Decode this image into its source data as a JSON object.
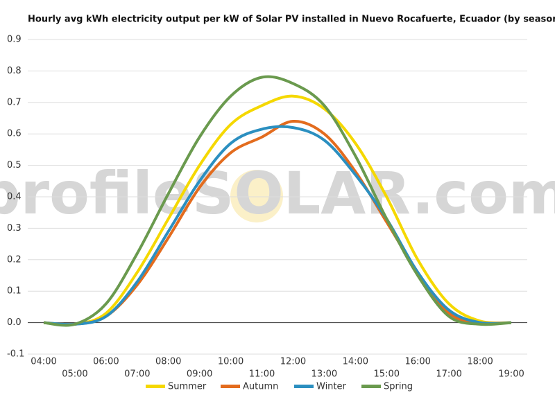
{
  "chart_data": {
    "type": "line",
    "title": "Hourly avg kWh electricity output per kW of Solar PV installed in Nuevo Rocafuerte, Ecuador (by season)",
    "watermark": "profileSOLAR.com",
    "categories": [
      "04:00",
      "05:00",
      "06:00",
      "07:00",
      "08:00",
      "09:00",
      "10:00",
      "11:00",
      "12:00",
      "13:00",
      "14:00",
      "15:00",
      "16:00",
      "17:00",
      "18:00",
      "19:00"
    ],
    "series": [
      {
        "name": "Summer",
        "color": "#f5d800",
        "values": [
          0,
          -0.005,
          0.03,
          0.16,
          0.33,
          0.5,
          0.63,
          0.69,
          0.72,
          0.68,
          0.57,
          0.4,
          0.2,
          0.06,
          0.005,
          0
        ]
      },
      {
        "name": "Autumn",
        "color": "#e36c1e",
        "values": [
          0,
          -0.005,
          0.02,
          0.12,
          0.27,
          0.43,
          0.54,
          0.59,
          0.64,
          0.6,
          0.48,
          0.32,
          0.16,
          0.03,
          0,
          0
        ]
      },
      {
        "name": "Winter",
        "color": "#2b8fc0",
        "values": [
          0,
          -0.005,
          0.02,
          0.13,
          0.29,
          0.45,
          0.57,
          0.615,
          0.62,
          0.58,
          0.47,
          0.33,
          0.16,
          0.04,
          0,
          0
        ]
      },
      {
        "name": "Spring",
        "color": "#6a9a4e",
        "values": [
          0,
          -0.005,
          0.06,
          0.22,
          0.41,
          0.59,
          0.72,
          0.78,
          0.76,
          0.69,
          0.53,
          0.33,
          0.15,
          0.02,
          -0.005,
          0
        ]
      }
    ],
    "ylim": [
      -0.1,
      0.9
    ],
    "yticks": [
      -0.1,
      {
        "value": 0,
        "label": "0.0"
      },
      0.1,
      0.2,
      0.3,
      0.4,
      0.5,
      0.6,
      0.7,
      0.8,
      0.9
    ],
    "grid": true,
    "legend": "bottom"
  }
}
